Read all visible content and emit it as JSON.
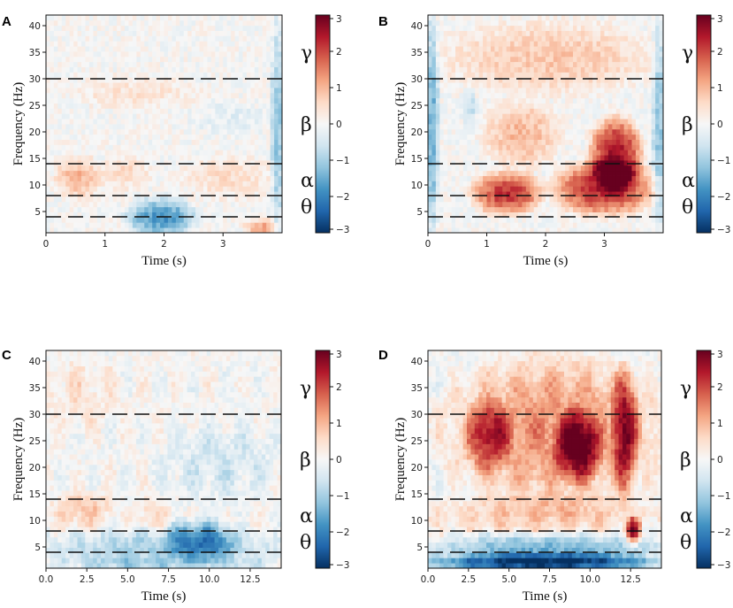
{
  "chart_data": [
    {
      "panel": "A",
      "type": "heatmap",
      "xlabel": "Time (s)",
      "ylabel": "Frequency (Hz)",
      "xlim": [
        0,
        4
      ],
      "ylim": [
        1,
        42
      ],
      "x_ticks": [
        "0",
        "1",
        "2",
        "3"
      ],
      "y_ticks": [
        "5",
        "10",
        "15",
        "20",
        "25",
        "30",
        "35",
        "40"
      ],
      "band_boundaries_hz": [
        4,
        8,
        14,
        30
      ],
      "band_labels": [
        "γ",
        "β",
        "α",
        "θ"
      ],
      "colorbar": {
        "range": [
          -3,
          3
        ],
        "ticks": [
          "3",
          "2",
          "1",
          "0",
          "−1",
          "−2",
          "−3"
        ]
      },
      "regions": [
        {
          "t": [
            0.2,
            0.9
          ],
          "f": [
            8,
            15
          ],
          "value": 1.0
        },
        {
          "t": [
            1.0,
            1.7
          ],
          "f": [
            10,
            15
          ],
          "value": 0.6
        },
        {
          "t": [
            2.4,
            3.8
          ],
          "f": [
            8,
            15
          ],
          "value": 0.5
        },
        {
          "t": [
            0.5,
            2.5
          ],
          "f": [
            25,
            30
          ],
          "value": 0.4
        },
        {
          "t": [
            1.4,
            2.5
          ],
          "f": [
            1,
            7
          ],
          "value": -1.8
        },
        {
          "t": [
            3.85,
            4.0
          ],
          "f": [
            1,
            40
          ],
          "value": -1.2
        },
        {
          "t": [
            2.5,
            3.8
          ],
          "f": [
            20,
            25
          ],
          "value": -0.3
        },
        {
          "t": [
            3.4,
            3.9
          ],
          "f": [
            1,
            3
          ],
          "value": 1.2
        }
      ]
    },
    {
      "panel": "B",
      "type": "heatmap",
      "xlabel": "Time (s)",
      "ylabel": "Frequency (Hz)",
      "xlim": [
        0,
        4
      ],
      "ylim": [
        1,
        42
      ],
      "x_ticks": [
        "0",
        "1",
        "2",
        "3"
      ],
      "y_ticks": [
        "5",
        "10",
        "15",
        "20",
        "25",
        "30",
        "35",
        "40"
      ],
      "band_boundaries_hz": [
        4,
        8,
        14,
        30
      ],
      "band_labels": [
        "γ",
        "β",
        "α",
        "θ"
      ],
      "colorbar": {
        "range": [
          -3,
          3
        ],
        "ticks": [
          "3",
          "2",
          "1",
          "0",
          "−1",
          "−2",
          "−3"
        ]
      },
      "regions": [
        {
          "t": [
            0.8,
            1.9
          ],
          "f": [
            5,
            12
          ],
          "value": 2.2
        },
        {
          "t": [
            2.2,
            3.8
          ],
          "f": [
            5,
            14
          ],
          "value": 2.4
        },
        {
          "t": [
            2.8,
            3.6
          ],
          "f": [
            10,
            22
          ],
          "value": 2.6
        },
        {
          "t": [
            1.0,
            2.2
          ],
          "f": [
            14,
            25
          ],
          "value": 1.0
        },
        {
          "t": [
            0.3,
            3.8
          ],
          "f": [
            28,
            40
          ],
          "value": 0.8
        },
        {
          "t": [
            0.0,
            0.15
          ],
          "f": [
            1,
            42
          ],
          "value": -1.5
        },
        {
          "t": [
            3.85,
            4.0
          ],
          "f": [
            1,
            42
          ],
          "value": -1.2
        },
        {
          "t": [
            0.6,
            0.8
          ],
          "f": [
            22,
            27
          ],
          "value": -0.8
        }
      ]
    },
    {
      "panel": "C",
      "type": "heatmap",
      "xlabel": "Time (s)",
      "ylabel": "Frequency (Hz)",
      "xlim": [
        0,
        14.4
      ],
      "ylim": [
        1,
        42
      ],
      "x_ticks": [
        "0.0",
        "2.5",
        "5.0",
        "7.5",
        "10.0",
        "12.5"
      ],
      "y_ticks": [
        "5",
        "10",
        "15",
        "20",
        "25",
        "30",
        "35",
        "40"
      ],
      "band_boundaries_hz": [
        4,
        8,
        14,
        30
      ],
      "band_labels": [
        "γ",
        "β",
        "α",
        "θ"
      ],
      "colorbar": {
        "range": [
          -3,
          3
        ],
        "ticks": [
          "3",
          "2",
          "1",
          "0",
          "−1",
          "−2",
          "−3"
        ]
      },
      "regions": [
        {
          "t": [
            0,
            14.4
          ],
          "f": [
            1,
            8
          ],
          "value": -1.0
        },
        {
          "t": [
            7.5,
            11.5
          ],
          "f": [
            3,
            10
          ],
          "value": -1.5
        },
        {
          "t": [
            0.5,
            4.0
          ],
          "f": [
            9,
            15
          ],
          "value": 0.8
        },
        {
          "t": [
            5.5,
            7.5
          ],
          "f": [
            8,
            14
          ],
          "value": 0.5
        },
        {
          "t": [
            0,
            4.5
          ],
          "f": [
            28,
            40
          ],
          "value": 0.4
        },
        {
          "t": [
            7.0,
            14.4
          ],
          "f": [
            14,
            28
          ],
          "value": -0.5
        },
        {
          "t": [
            0,
            14.4
          ],
          "f": [
            1,
            2.5
          ],
          "value": -0.4
        }
      ]
    },
    {
      "panel": "D",
      "type": "heatmap",
      "xlabel": "Time (s)",
      "ylabel": "Frequency (Hz)",
      "xlim": [
        0,
        14.4
      ],
      "ylim": [
        1,
        42
      ],
      "x_ticks": [
        "0.0",
        "2.5",
        "5.0",
        "7.5",
        "10.0",
        "12.5"
      ],
      "y_ticks": [
        "5",
        "10",
        "15",
        "20",
        "25",
        "30",
        "35",
        "40"
      ],
      "band_boundaries_hz": [
        4,
        8,
        14,
        30
      ],
      "band_labels": [
        "γ",
        "β",
        "α",
        "θ"
      ],
      "colorbar": {
        "range": [
          -3,
          3
        ],
        "ticks": [
          "3",
          "2",
          "1",
          "0",
          "−1",
          "−2",
          "−3"
        ]
      },
      "regions": [
        {
          "t": [
            1.5,
            14.0
          ],
          "f": [
            14,
            40
          ],
          "value": 1.4
        },
        {
          "t": [
            8.0,
            10.5
          ],
          "f": [
            18,
            30
          ],
          "value": 2.2
        },
        {
          "t": [
            11.5,
            12.8
          ],
          "f": [
            15,
            38
          ],
          "value": 2.0
        },
        {
          "t": [
            2.5,
            5.0
          ],
          "f": [
            20,
            32
          ],
          "value": 1.6
        },
        {
          "t": [
            0,
            14.4
          ],
          "f": [
            8,
            14
          ],
          "value": 0.8
        },
        {
          "t": [
            0,
            14.4
          ],
          "f": [
            1,
            7
          ],
          "value": -1.5
        },
        {
          "t": [
            0,
            14.4
          ],
          "f": [
            1,
            3
          ],
          "value": -2.0
        },
        {
          "t": [
            12.3,
            13.0
          ],
          "f": [
            6,
            10
          ],
          "value": 2.5
        }
      ]
    }
  ]
}
